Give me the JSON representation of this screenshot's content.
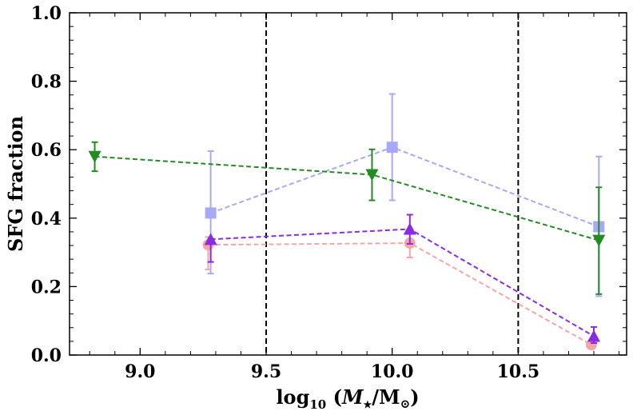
{
  "chart_data": {
    "type": "line",
    "title": "",
    "xlabel": {
      "base": "log",
      "sub": "10",
      "open": " (",
      "m": "M",
      "star": "★",
      "slash": "/M",
      "sun": "⊙",
      "close": ")"
    },
    "ylabel": "SFG fraction",
    "xlim": [
      8.72,
      10.93
    ],
    "ylim": [
      0.0,
      1.0
    ],
    "xticks": [
      9.0,
      9.5,
      10.0,
      10.5
    ],
    "xtick_labels": [
      "9.0",
      "9.5",
      "10.0",
      "10.5"
    ],
    "yticks": [
      0.0,
      0.2,
      0.4,
      0.6,
      0.8,
      1.0
    ],
    "ytick_labels": [
      "0.0",
      "0.2",
      "0.4",
      "0.6",
      "0.8",
      "1.0"
    ],
    "vlines": [
      9.5,
      10.5
    ],
    "series": [
      {
        "name": "blue-squares",
        "color": "#a8a8f8",
        "marker": "square",
        "x": [
          9.28,
          10.0,
          10.82
        ],
        "y": [
          0.415,
          0.607,
          0.375
        ],
        "yerr_low": [
          0.238,
          0.452,
          0.172
        ],
        "yerr_high": [
          0.596,
          0.763,
          0.58
        ]
      },
      {
        "name": "pink-circles",
        "color": "#f4a6a6",
        "marker": "circle",
        "x": [
          9.27,
          10.07,
          10.79
        ],
        "y": [
          0.322,
          0.327,
          0.03
        ],
        "yerr_low": [
          0.25,
          0.285,
          0.02
        ],
        "yerr_high": [
          0.345,
          0.34,
          0.045
        ]
      },
      {
        "name": "green-down-triangles",
        "color": "#228b22",
        "marker": "triangle-down",
        "x": [
          8.82,
          9.92,
          10.82
        ],
        "y": [
          0.58,
          0.527,
          0.335
        ],
        "yerr_low": [
          0.537,
          0.452,
          0.178
        ],
        "yerr_high": [
          0.622,
          0.601,
          0.49
        ]
      },
      {
        "name": "purple-up-triangles",
        "color": "#8a2be2",
        "marker": "triangle-up",
        "x": [
          9.28,
          10.07,
          10.8
        ],
        "y": [
          0.338,
          0.368,
          0.055
        ],
        "yerr_low": [
          0.272,
          0.325,
          0.035
        ],
        "yerr_high": [
          0.34,
          0.41,
          0.082
        ]
      }
    ]
  }
}
